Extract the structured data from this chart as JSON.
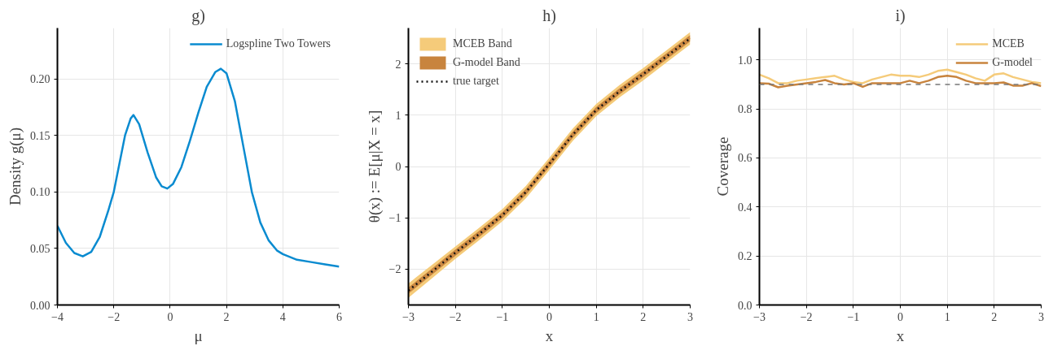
{
  "chart_data": [
    {
      "type": "line",
      "title": "g)",
      "xlabel": "μ",
      "ylabel": "Density g(μ)",
      "xlim": [
        -4,
        6
      ],
      "ylim": [
        0,
        0.245
      ],
      "xticks": [
        -4,
        -2,
        0,
        2,
        4,
        6
      ],
      "yticks": [
        {
          "value": 0,
          "label": "0.00"
        },
        {
          "value": 0.05,
          "label": "0.05"
        },
        {
          "value": 0.1,
          "label": "0.10"
        },
        {
          "value": 0.15,
          "label": "0.15"
        },
        {
          "value": 0.2,
          "label": "0.20"
        }
      ],
      "grid": true,
      "legend": "top right",
      "series": [
        {
          "name": "Logspline Two Towers",
          "color": "#0a8bd0",
          "x": [
            -4,
            -3.7,
            -3.4,
            -3.1,
            -2.8,
            -2.5,
            -2.2,
            -2.0,
            -1.8,
            -1.6,
            -1.4,
            -1.3,
            -1.1,
            -0.8,
            -0.5,
            -0.3,
            -0.1,
            0.1,
            0.4,
            0.7,
            1.0,
            1.3,
            1.6,
            1.8,
            2.0,
            2.3,
            2.6,
            2.9,
            3.2,
            3.5,
            3.8,
            4.0,
            4.5,
            5.0,
            5.5,
            6.0
          ],
          "values": [
            0.07,
            0.055,
            0.046,
            0.043,
            0.047,
            0.06,
            0.083,
            0.1,
            0.125,
            0.15,
            0.165,
            0.168,
            0.16,
            0.135,
            0.113,
            0.105,
            0.103,
            0.107,
            0.122,
            0.145,
            0.17,
            0.193,
            0.206,
            0.209,
            0.205,
            0.18,
            0.14,
            0.1,
            0.073,
            0.057,
            0.048,
            0.045,
            0.04,
            0.038,
            0.036,
            0.034
          ]
        }
      ]
    },
    {
      "type": "line",
      "title": "h)",
      "xlabel": "x",
      "ylabel": "θ(x) := E[μ|X = x]",
      "xlim": [
        -3,
        3
      ],
      "ylim": [
        -2.7,
        2.7
      ],
      "xticks": [
        -3,
        -2,
        -1,
        0,
        1,
        2,
        3
      ],
      "yticks": [
        -2,
        -1,
        0,
        1,
        2
      ],
      "grid": true,
      "legend": "top left",
      "series": [
        {
          "name": "MCEB Band",
          "color": "#f5cb7a",
          "x": [
            -3,
            -2.5,
            -2,
            -1.5,
            -1,
            -0.5,
            0,
            0.5,
            1,
            1.5,
            2,
            2.5,
            3
          ],
          "values": [
            -2.42,
            -2.05,
            -1.68,
            -1.32,
            -0.95,
            -0.5,
            0.05,
            0.62,
            1.1,
            1.47,
            1.8,
            2.15,
            2.5
          ],
          "lower": [
            -2.56,
            -2.18,
            -1.8,
            -1.44,
            -1.07,
            -0.62,
            -0.07,
            0.5,
            0.98,
            1.35,
            1.68,
            2.03,
            2.38
          ],
          "upper": [
            -2.28,
            -1.92,
            -1.56,
            -1.2,
            -0.83,
            -0.38,
            0.17,
            0.74,
            1.22,
            1.59,
            1.92,
            2.27,
            2.62
          ]
        },
        {
          "name": "G-model Band",
          "color": "#c8843e",
          "x": [
            -3,
            -2.5,
            -2,
            -1.5,
            -1,
            -0.5,
            0,
            0.5,
            1,
            1.5,
            2,
            2.5,
            3
          ],
          "values": [
            -2.42,
            -2.05,
            -1.68,
            -1.32,
            -0.95,
            -0.5,
            0.05,
            0.62,
            1.1,
            1.47,
            1.8,
            2.15,
            2.5
          ],
          "lower": [
            -2.48,
            -2.11,
            -1.74,
            -1.38,
            -1.01,
            -0.56,
            -0.01,
            0.56,
            1.04,
            1.41,
            1.74,
            2.09,
            2.44
          ],
          "upper": [
            -2.36,
            -1.99,
            -1.62,
            -1.26,
            -0.89,
            -0.44,
            0.11,
            0.68,
            1.16,
            1.53,
            1.86,
            2.21,
            2.56
          ]
        },
        {
          "name": "true target",
          "color": "#111111",
          "line_style": "dotted",
          "x": [
            -3,
            -2.5,
            -2,
            -1.5,
            -1,
            -0.5,
            0,
            0.5,
            1,
            1.5,
            2,
            2.5,
            3
          ],
          "values": [
            -2.42,
            -2.05,
            -1.68,
            -1.32,
            -0.95,
            -0.5,
            0.05,
            0.62,
            1.1,
            1.47,
            1.8,
            2.15,
            2.5
          ]
        }
      ]
    },
    {
      "type": "line",
      "title": "i)",
      "xlabel": "x",
      "ylabel": "Coverage",
      "xlim": [
        -3,
        3
      ],
      "ylim": [
        0,
        1.13
      ],
      "xticks": [
        -3,
        -2,
        -1,
        0,
        1,
        2,
        3
      ],
      "yticks": [
        {
          "value": 0,
          "label": "0.0"
        },
        {
          "value": 0.2,
          "label": "0.2"
        },
        {
          "value": 0.4,
          "label": "0.4"
        },
        {
          "value": 0.6,
          "label": "0.6"
        },
        {
          "value": 0.8,
          "label": "0.8"
        },
        {
          "value": 1.0,
          "label": "1.0"
        }
      ],
      "grid": true,
      "legend": "top right",
      "x": [
        -3,
        -2.8,
        -2.6,
        -2.4,
        -2.2,
        -2.0,
        -1.8,
        -1.6,
        -1.4,
        -1.2,
        -1.0,
        -0.8,
        -0.6,
        -0.4,
        -0.2,
        0,
        0.2,
        0.4,
        0.6,
        0.8,
        1.0,
        1.2,
        1.4,
        1.6,
        1.8,
        2.0,
        2.2,
        2.4,
        2.6,
        2.8,
        3.0
      ],
      "ref_lines": [
        {
          "axis": "y",
          "value": 0.9,
          "color": "#777777",
          "line_style": "dashed"
        }
      ],
      "series": [
        {
          "name": "MCEB",
          "color": "#f5cb7a",
          "values": [
            0.94,
            0.925,
            0.905,
            0.905,
            0.915,
            0.92,
            0.925,
            0.93,
            0.935,
            0.92,
            0.91,
            0.905,
            0.92,
            0.93,
            0.94,
            0.935,
            0.935,
            0.93,
            0.94,
            0.955,
            0.96,
            0.95,
            0.94,
            0.925,
            0.915,
            0.94,
            0.945,
            0.93,
            0.92,
            0.91,
            0.905
          ]
        },
        {
          "name": "G-model",
          "color": "#c8843e",
          "values": [
            0.905,
            0.903,
            0.888,
            0.895,
            0.9,
            0.905,
            0.91,
            0.918,
            0.905,
            0.9,
            0.905,
            0.89,
            0.905,
            0.905,
            0.905,
            0.905,
            0.915,
            0.905,
            0.915,
            0.93,
            0.935,
            0.93,
            0.915,
            0.905,
            0.905,
            0.905,
            0.908,
            0.895,
            0.895,
            0.905,
            0.893
          ]
        }
      ]
    }
  ]
}
